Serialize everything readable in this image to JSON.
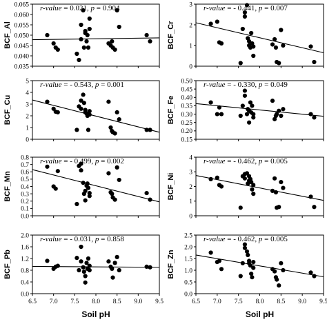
{
  "chart_data": [
    {
      "type": "scatter",
      "ylabel": "BCF_Al",
      "annotation": {
        "r_label": "r-value",
        "r": "= 0.021",
        "p_label": "p",
        "p": "= 0.904"
      },
      "ylim": [
        0.035,
        0.065
      ],
      "yticks": [
        "0.035",
        "0.040",
        "0.045",
        "0.050",
        "0.055",
        "0.060",
        "0.065"
      ],
      "xlim": [
        6.5,
        9.5
      ],
      "trend": [
        [
          6.5,
          0.0478
        ],
        [
          9.5,
          0.0487
        ]
      ],
      "x": [
        6.85,
        7.0,
        7.05,
        7.1,
        7.55,
        7.6,
        7.65,
        7.65,
        7.7,
        7.72,
        7.75,
        7.75,
        7.78,
        7.8,
        7.82,
        7.85,
        7.85,
        8.3,
        8.35,
        8.38,
        8.4,
        8.45,
        8.5,
        8.55,
        9.2,
        9.28
      ],
      "y": [
        0.05,
        0.046,
        0.044,
        0.043,
        0.041,
        0.038,
        0.048,
        0.055,
        0.062,
        0.044,
        0.052,
        0.051,
        0.047,
        0.05,
        0.044,
        0.058,
        0.053,
        0.046,
        0.045,
        0.047,
        0.044,
        0.043,
        0.062,
        0.054,
        0.05,
        0.047
      ]
    },
    {
      "type": "scatter",
      "ylabel": "BCF_Cr",
      "annotation": {
        "r_label": "r-value",
        "r": "= - 0.441",
        "p_label": "p",
        "p": "= 0.007"
      },
      "ylim": [
        0,
        3
      ],
      "yticks": [
        "0",
        "1",
        "2",
        "3"
      ],
      "xlim": [
        6.5,
        9.5
      ],
      "trend": [
        [
          6.5,
          2.1
        ],
        [
          9.5,
          0.65
        ]
      ],
      "x": [
        6.85,
        7.0,
        7.05,
        7.1,
        7.55,
        7.6,
        7.65,
        7.65,
        7.7,
        7.72,
        7.75,
        7.75,
        7.78,
        7.8,
        7.82,
        7.85,
        7.85,
        8.3,
        8.35,
        8.38,
        8.4,
        8.45,
        8.5,
        8.55,
        9.2,
        9.28
      ],
      "y": [
        2.05,
        2.15,
        1.15,
        1.1,
        0.15,
        1.8,
        2.4,
        2.6,
        2.95,
        1.35,
        1.2,
        1.0,
        0.9,
        1.6,
        1.1,
        0.95,
        0.5,
        1.05,
        1.3,
        0.9,
        0.2,
        0.15,
        1.75,
        1.0,
        0.95,
        0.2
      ]
    },
    {
      "type": "scatter",
      "ylabel": "BCF_Cu",
      "annotation": {
        "r_label": "r-value",
        "r": "= - 0.543",
        "p_label": "p",
        "p": "= 0.001"
      },
      "ylim": [
        0,
        5
      ],
      "yticks": [
        "0",
        "1",
        "2",
        "3",
        "4",
        "5"
      ],
      "xlim": [
        6.5,
        9.5
      ],
      "trend": [
        [
          6.5,
          3.35
        ],
        [
          9.5,
          0.6
        ]
      ],
      "x": [
        6.85,
        7.0,
        7.05,
        7.1,
        7.55,
        7.6,
        7.65,
        7.65,
        7.7,
        7.72,
        7.75,
        7.75,
        7.78,
        7.8,
        7.82,
        7.85,
        7.85,
        8.3,
        8.35,
        8.38,
        8.4,
        8.45,
        8.5,
        8.55,
        9.2,
        9.28
      ],
      "y": [
        3.2,
        2.6,
        2.35,
        2.3,
        0.8,
        2.8,
        3.3,
        2.6,
        3.8,
        3.1,
        2.5,
        2.3,
        2.2,
        2.0,
        0.8,
        2.4,
        2.1,
        3.2,
        1.0,
        0.7,
        0.6,
        0.5,
        2.3,
        1.7,
        0.8,
        0.8
      ]
    },
    {
      "type": "scatter",
      "ylabel": "BCF_Fe",
      "annotation": {
        "r_label": "r-value",
        "r": "= - 0.330",
        "p_label": "p",
        "p": "= 0.049"
      },
      "ylim": [
        0.15,
        0.5
      ],
      "yticks": [
        "0.15",
        "0.20",
        "0.25",
        "0.30",
        "0.35",
        "0.40",
        "0.45",
        "0.50"
      ],
      "xlim": [
        6.5,
        9.5
      ],
      "trend": [
        [
          6.5,
          0.363
        ],
        [
          9.5,
          0.287
        ]
      ],
      "x": [
        6.85,
        7.0,
        7.05,
        7.1,
        7.55,
        7.6,
        7.65,
        7.65,
        7.7,
        7.72,
        7.75,
        7.75,
        7.78,
        7.8,
        7.82,
        7.85,
        7.85,
        8.3,
        8.35,
        8.38,
        8.4,
        8.45,
        8.5,
        8.55,
        9.2,
        9.28
      ],
      "y": [
        0.37,
        0.3,
        0.34,
        0.3,
        0.29,
        0.35,
        0.44,
        0.41,
        0.3,
        0.33,
        0.25,
        0.32,
        0.37,
        0.31,
        0.35,
        0.3,
        0.28,
        0.38,
        0.27,
        0.29,
        0.3,
        0.32,
        0.29,
        0.33,
        0.3,
        0.28
      ]
    },
    {
      "type": "scatter",
      "ylabel": "BCF_Mn",
      "annotation": {
        "r_label": "r-value",
        "r": "= - 0.499",
        "p_label": "p",
        "p": "= 0.002"
      },
      "ylim": [
        0,
        0.8
      ],
      "yticks": [
        "0.0",
        "0.1",
        "0.2",
        "0.3",
        "0.4",
        "0.5",
        "0.6",
        "0.7",
        "0.8"
      ],
      "xlim": [
        6.5,
        9.5
      ],
      "trend": [
        [
          6.5,
          0.63
        ],
        [
          9.5,
          0.19
        ]
      ],
      "x": [
        6.85,
        7.0,
        7.05,
        7.1,
        7.55,
        7.6,
        7.65,
        7.65,
        7.7,
        7.72,
        7.75,
        7.75,
        7.78,
        7.8,
        7.82,
        7.85,
        7.85,
        8.3,
        8.35,
        8.38,
        8.4,
        8.45,
        8.5,
        8.55,
        9.2,
        9.28
      ],
      "y": [
        0.67,
        0.4,
        0.37,
        0.61,
        0.16,
        0.68,
        0.71,
        0.62,
        0.45,
        0.3,
        0.21,
        0.34,
        0.41,
        0.44,
        0.38,
        0.27,
        0.31,
        0.58,
        0.32,
        0.3,
        0.25,
        0.22,
        0.66,
        0.49,
        0.31,
        0.22
      ]
    },
    {
      "type": "scatter",
      "ylabel": "BCF_Ni",
      "annotation": {
        "r_label": "r-value",
        "r": "= - 0.462",
        "p_label": "p",
        "p": "= 0.005"
      },
      "ylim": [
        0,
        4
      ],
      "yticks": [
        "0",
        "1",
        "2",
        "3",
        "4"
      ],
      "xlim": [
        6.5,
        9.5
      ],
      "trend": [
        [
          6.5,
          2.75
        ],
        [
          9.5,
          1.05
        ]
      ],
      "x": [
        6.85,
        7.0,
        7.05,
        7.1,
        7.55,
        7.6,
        7.65,
        7.65,
        7.7,
        7.72,
        7.75,
        7.75,
        7.78,
        7.8,
        7.82,
        7.85,
        7.85,
        8.3,
        8.35,
        8.38,
        8.4,
        8.45,
        8.5,
        8.55,
        9.2,
        9.28
      ],
      "y": [
        2.5,
        2.6,
        2.1,
        2.0,
        0.55,
        2.7,
        2.85,
        2.55,
        2.9,
        2.2,
        2.7,
        2.4,
        2.5,
        2.3,
        1.8,
        1.5,
        2.1,
        1.7,
        2.55,
        1.6,
        0.55,
        0.6,
        2.3,
        1.9,
        1.3,
        0.6
      ]
    },
    {
      "type": "scatter",
      "ylabel": "BCF_Pb",
      "annotation": {
        "r_label": "r-value",
        "r": "= - 0.031",
        "p_label": "p",
        "p": "= 0.858"
      },
      "ylim": [
        0,
        2.0
      ],
      "yticks": [
        "0.0",
        "0.4",
        "0.8",
        "1.2",
        "1.6",
        "2.0"
      ],
      "xlim": [
        6.5,
        9.5
      ],
      "xlabel": "Soil pH",
      "xticks": [
        "6.5",
        "7.0",
        "7.5",
        "8.0",
        "8.5",
        "9.0",
        "9.5"
      ],
      "trend": [
        [
          6.5,
          0.93
        ],
        [
          9.5,
          0.9
        ]
      ],
      "x": [
        6.85,
        7.0,
        7.05,
        7.1,
        7.55,
        7.6,
        7.65,
        7.65,
        7.7,
        7.72,
        7.75,
        7.75,
        7.78,
        7.8,
        7.82,
        7.85,
        7.85,
        8.3,
        8.35,
        8.38,
        8.4,
        8.45,
        8.5,
        8.55,
        9.2,
        9.28
      ],
      "y": [
        1.12,
        0.85,
        0.92,
        0.95,
        1.22,
        0.8,
        1.6,
        1.1,
        0.9,
        0.75,
        0.6,
        0.38,
        1.05,
        0.85,
        1.2,
        0.95,
        0.8,
        1.1,
        0.92,
        0.85,
        0.55,
        1.05,
        1.25,
        0.8,
        0.92,
        0.9
      ]
    },
    {
      "type": "scatter",
      "ylabel": "BCF_Zn",
      "annotation": {
        "r_label": "r-value",
        "r": "= - 0.462",
        "p_label": "p",
        "p": "= 0.005"
      },
      "ylim": [
        0,
        2.5
      ],
      "yticks": [
        "0.0",
        "0.5",
        "1.0",
        "1.5",
        "2.0",
        "2.5"
      ],
      "xlim": [
        6.5,
        9.5
      ],
      "xlabel": "Soil pH",
      "xticks": [
        "6.5",
        "7.0",
        "7.5",
        "8.0",
        "8.5",
        "9.0",
        "9.5"
      ],
      "trend": [
        [
          6.5,
          1.65
        ],
        [
          9.5,
          0.72
        ]
      ],
      "x": [
        6.85,
        7.0,
        7.05,
        7.1,
        7.55,
        7.6,
        7.65,
        7.65,
        7.7,
        7.72,
        7.75,
        7.75,
        7.78,
        7.8,
        7.82,
        7.85,
        7.85,
        8.3,
        8.35,
        8.38,
        8.4,
        8.45,
        8.5,
        8.55,
        9.2,
        9.28
      ],
      "y": [
        1.75,
        1.35,
        1.4,
        1.05,
        0.75,
        1.3,
        2.1,
        1.95,
        1.8,
        1.65,
        1.4,
        1.3,
        1.2,
        0.85,
        0.7,
        1.1,
        1.35,
        1.05,
        0.95,
        0.7,
        0.6,
        0.35,
        1.3,
        1.0,
        0.9,
        0.75
      ]
    }
  ]
}
